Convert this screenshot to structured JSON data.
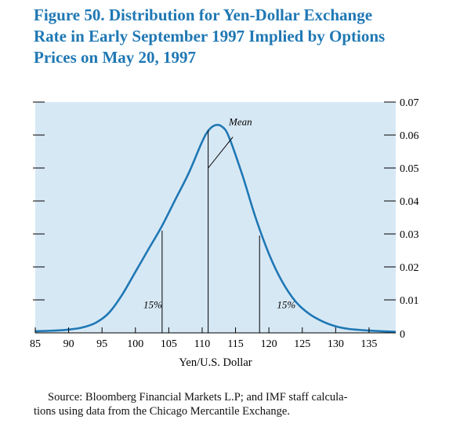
{
  "title_lines": [
    "Figure 50.  Distribution for Yen-Dollar Exchange",
    "Rate in Early September 1997 Implied by Options",
    "Prices on May 20, 1997"
  ],
  "source_lines": [
    "Source: Bloomberg Financial Markets L.P; and IMF staff calcula-",
    "tions using data from the Chicago Mercantile Exchange."
  ],
  "colors": {
    "title": "#1f78b4",
    "curve": "#1f78b4",
    "plot_bg": "#d7e8f5"
  },
  "chart_data": {
    "type": "area",
    "xlabel": "Yen/U.S. Dollar",
    "ylabel": "",
    "xlim": [
      85,
      139
    ],
    "ylim": [
      0,
      0.07
    ],
    "x_ticks": [
      85,
      90,
      95,
      100,
      105,
      110,
      115,
      120,
      125,
      130,
      135
    ],
    "y_ticks": [
      0,
      0.01,
      0.02,
      0.03,
      0.04,
      0.05,
      0.06,
      0.07
    ],
    "y_tick_labels": [
      "0",
      "0.01",
      "0.02",
      "0.03",
      "0.04",
      "0.05",
      "0.06",
      "0.07"
    ],
    "grid": false,
    "series": [
      {
        "x": [
          85,
          88,
          90,
          92,
          94,
          96,
          98,
          100,
          102,
          104,
          106,
          108,
          110,
          111,
          112,
          113,
          114,
          116,
          118,
          120,
          122,
          124,
          126,
          128,
          130,
          132,
          135,
          139
        ],
        "y": [
          0.0005,
          0.0007,
          0.001,
          0.0016,
          0.003,
          0.006,
          0.0115,
          0.0185,
          0.0255,
          0.0325,
          0.0405,
          0.0485,
          0.058,
          0.0615,
          0.063,
          0.0625,
          0.0595,
          0.048,
          0.035,
          0.024,
          0.0155,
          0.0095,
          0.0058,
          0.0035,
          0.002,
          0.0012,
          0.0007,
          0.0003
        ]
      }
    ],
    "markers": [
      {
        "x": 104,
        "y": 0.031
      },
      {
        "x": 110.9,
        "y": 0.0615
      },
      {
        "x": 118.6,
        "y": 0.0295
      }
    ],
    "annotations": [
      {
        "text": "Mean",
        "x": 114,
        "y": 0.063
      },
      {
        "text": "15%",
        "x": 101.2,
        "y": 0.0075
      },
      {
        "text": "15%",
        "x": 121.2,
        "y": 0.0075
      }
    ],
    "leader_line": {
      "from": {
        "x": 110.9,
        "y": 0.05
      },
      "to": {
        "x": 114.6,
        "y": 0.0594
      }
    }
  }
}
